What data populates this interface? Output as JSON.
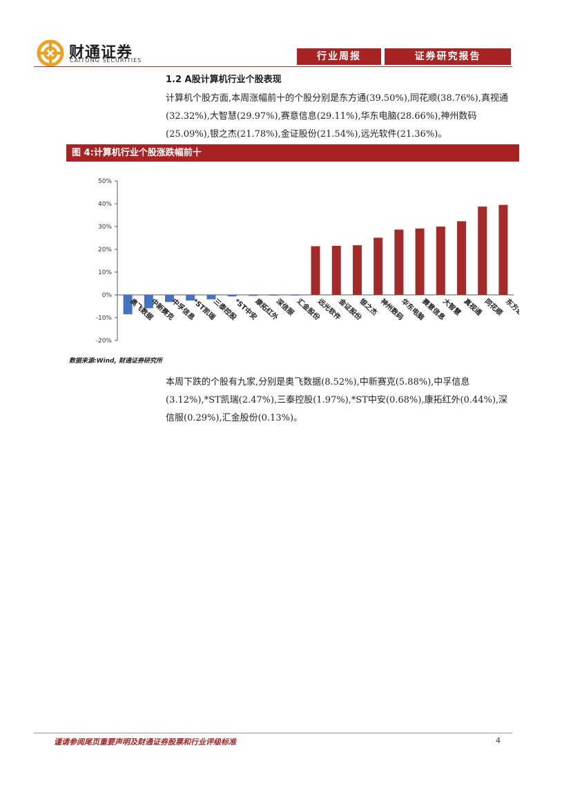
{
  "header": {
    "logo_cn": "财通证券",
    "logo_en": "CAITONG SECURITIES",
    "tab_weekly": "行业周报",
    "tab_report": "证券研究报告"
  },
  "section": {
    "title": "1.2  A股计算机行业个股表现",
    "para1": "计算机个股方面,本周涨幅前十的个股分别是东方通(39.50%),同花顺(38.76%),真视通(32.32%),大智慧(29.97%),赛意信息(29.11%),华东电脑(28.66%),神州数码(25.09%),银之杰(21.78%),金证股份(21.54%),远光软件(21.36%)。",
    "para2": "本周下跌的个股有九家,分别是奥飞数据(8.52%),中新赛克(5.88%),中孚信息(3.12%),*ST凯瑞(2.47%),三泰控股(1.97%),*ST中安(0.68%),康拓红外(0.44%),深信服(0.29%),汇金股份(0.13%)。"
  },
  "figure": {
    "title": "图 4:计算机行业个股涨跌幅前十",
    "source": "数据来源:Wind, 财通证券研究所"
  },
  "chart_data": {
    "type": "bar",
    "title": "计算机行业个股涨跌幅前十",
    "categories": [
      "奥飞数据",
      "中新赛克",
      "中孚信息",
      "*ST凯瑞",
      "三泰控股",
      "*ST中安",
      "康拓红外",
      "深信服",
      "汇金股份",
      "远光软件",
      "金证股份",
      "银之杰",
      "神州数码",
      "华东电脑",
      "赛意信息",
      "大智慧",
      "真视通",
      "同花顺",
      "东方通"
    ],
    "values": [
      -8.52,
      -5.88,
      -3.12,
      -2.47,
      -1.97,
      -0.68,
      -0.44,
      -0.29,
      -0.13,
      21.36,
      21.54,
      21.78,
      25.09,
      28.66,
      29.11,
      29.97,
      32.32,
      38.76,
      39.5
    ],
    "yticks": [
      "50%",
      "40%",
      "30%",
      "20%",
      "10%",
      "0%",
      "-10%",
      "-20%"
    ],
    "ylim": [
      -20,
      50
    ],
    "colors": {
      "negative": "#4472c4",
      "positive": "#a52a2a"
    }
  },
  "footer": {
    "disclaimer": "谨请参阅尾页重要声明及财通证券股票和行业评级标准",
    "page": "4"
  }
}
